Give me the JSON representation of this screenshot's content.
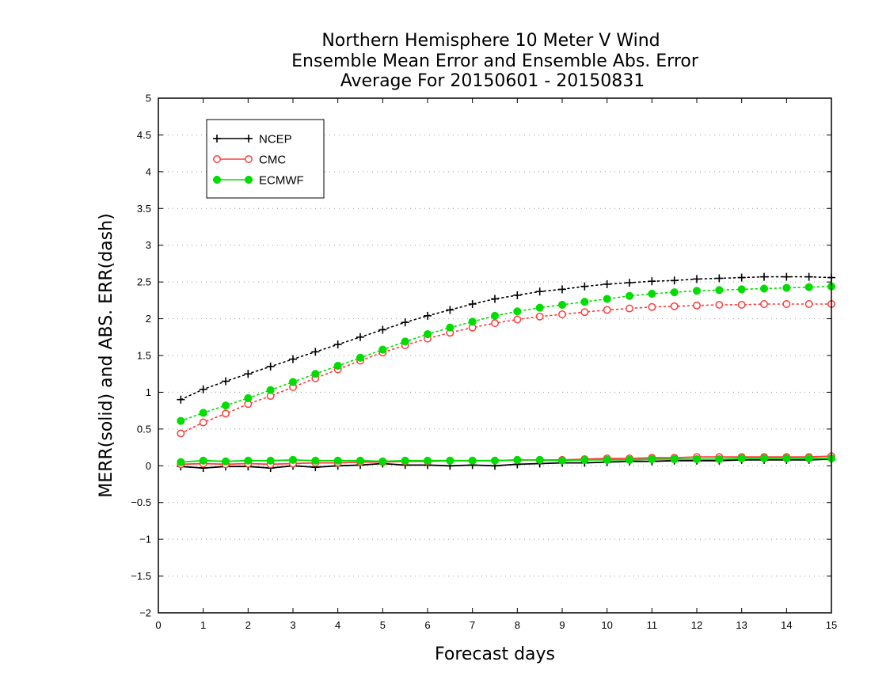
{
  "chart_data": {
    "type": "line",
    "title_lines": [
      "Northern Hemisphere 10 Meter V Wind",
      "Ensemble Mean Error and Ensemble Abs. Error",
      "Average For 20150601 - 20150831"
    ],
    "xlabel": "Forecast days",
    "ylabel": "MERR(solid) and ABS. ERR(dash)",
    "xlim": [
      0,
      15
    ],
    "ylim": [
      -2,
      5
    ],
    "x_ticks": [
      0,
      1,
      2,
      3,
      4,
      5,
      6,
      7,
      8,
      9,
      10,
      11,
      12,
      13,
      14,
      15
    ],
    "y_ticks": [
      -2,
      -1.5,
      -1,
      -0.5,
      0,
      0.5,
      1,
      1.5,
      2,
      2.5,
      3,
      3.5,
      4,
      4.5,
      5
    ],
    "grid": "horizontal-dotted",
    "legend_position": "top-left",
    "x": [
      0.5,
      1,
      1.5,
      2,
      2.5,
      3,
      3.5,
      4,
      4.5,
      5,
      5.5,
      6,
      6.5,
      7,
      7.5,
      8,
      8.5,
      9,
      9.5,
      10,
      10.5,
      11,
      11.5,
      12,
      12.5,
      13,
      13.5,
      14,
      14.5,
      15
    ],
    "series": [
      {
        "name": "NCEP",
        "color": "#000000",
        "marker": "plus",
        "abs_err": [
          0.9,
          1.04,
          1.15,
          1.25,
          1.35,
          1.45,
          1.55,
          1.65,
          1.75,
          1.85,
          1.95,
          2.04,
          2.12,
          2.2,
          2.27,
          2.32,
          2.37,
          2.4,
          2.44,
          2.47,
          2.49,
          2.51,
          2.52,
          2.54,
          2.55,
          2.56,
          2.57,
          2.57,
          2.57,
          2.56
        ],
        "mean_err": [
          -0.01,
          -0.03,
          -0.01,
          -0.01,
          -0.03,
          0.0,
          -0.02,
          0.0,
          0.01,
          0.03,
          0.01,
          0.01,
          0.0,
          0.01,
          0.0,
          0.02,
          0.03,
          0.04,
          0.04,
          0.05,
          0.06,
          0.06,
          0.07,
          0.07,
          0.07,
          0.08,
          0.08,
          0.08,
          0.08,
          0.09
        ]
      },
      {
        "name": "CMC",
        "color": "#ff3b3b",
        "marker": "open-circle",
        "abs_err": [
          0.44,
          0.59,
          0.71,
          0.84,
          0.95,
          1.07,
          1.19,
          1.31,
          1.43,
          1.54,
          1.64,
          1.73,
          1.81,
          1.88,
          1.94,
          1.99,
          2.03,
          2.06,
          2.09,
          2.12,
          2.14,
          2.16,
          2.17,
          2.18,
          2.19,
          2.19,
          2.2,
          2.2,
          2.2,
          2.2
        ],
        "mean_err": [
          0.02,
          0.03,
          0.02,
          0.03,
          0.02,
          0.03,
          0.04,
          0.04,
          0.05,
          0.05,
          0.06,
          0.06,
          0.07,
          0.07,
          0.07,
          0.08,
          0.08,
          0.08,
          0.09,
          0.1,
          0.1,
          0.11,
          0.11,
          0.12,
          0.12,
          0.12,
          0.12,
          0.12,
          0.12,
          0.13
        ]
      },
      {
        "name": "ECMWF",
        "color": "#00dd00",
        "marker": "filled-circle",
        "abs_err": [
          0.61,
          0.72,
          0.82,
          0.92,
          1.03,
          1.14,
          1.25,
          1.36,
          1.47,
          1.58,
          1.69,
          1.79,
          1.88,
          1.96,
          2.04,
          2.1,
          2.15,
          2.19,
          2.23,
          2.27,
          2.31,
          2.34,
          2.36,
          2.38,
          2.39,
          2.4,
          2.41,
          2.42,
          2.43,
          2.44
        ],
        "mean_err": [
          0.05,
          0.07,
          0.06,
          0.07,
          0.07,
          0.08,
          0.07,
          0.07,
          0.07,
          0.06,
          0.07,
          0.07,
          0.07,
          0.07,
          0.07,
          0.08,
          0.08,
          0.07,
          0.08,
          0.08,
          0.08,
          0.09,
          0.09,
          0.09,
          0.09,
          0.1,
          0.1,
          0.1,
          0.1,
          0.1
        ]
      }
    ]
  }
}
